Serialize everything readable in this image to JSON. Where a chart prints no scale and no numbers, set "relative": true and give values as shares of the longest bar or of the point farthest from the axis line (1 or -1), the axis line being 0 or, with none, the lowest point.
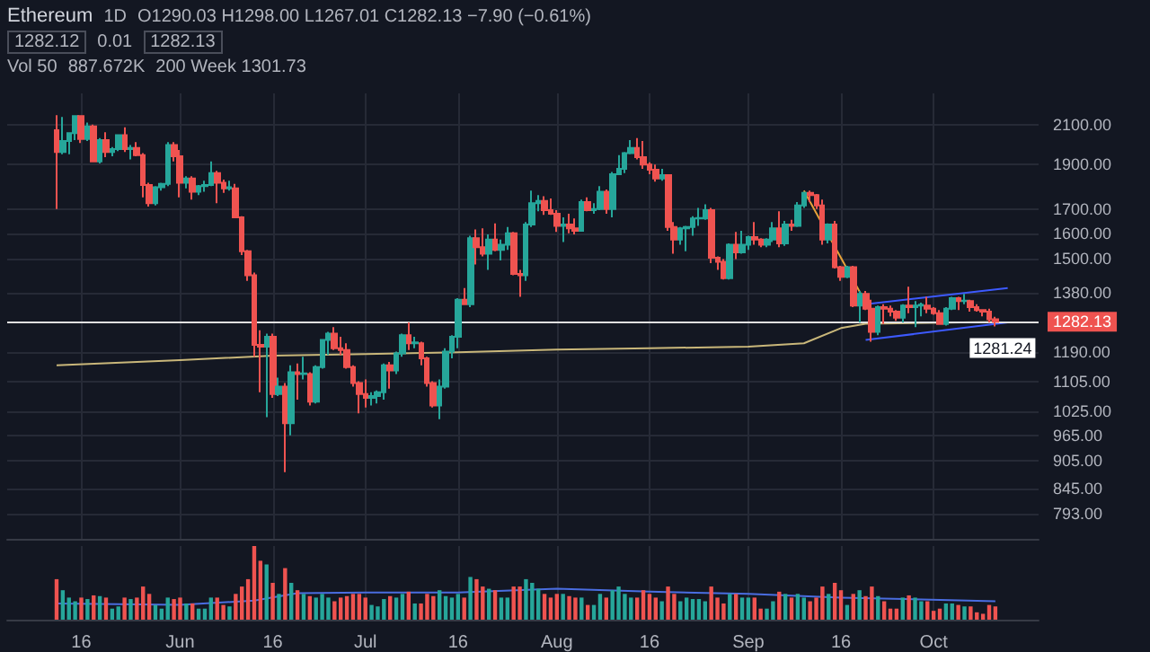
{
  "chart_data": [
    {
      "type": "candlestick",
      "title": "Ethereum",
      "annotations": [
        "1D",
        "O1290.03 H1298.00 L1267.01 C1282.13 −7.90 (−0.61%)",
        "1282.12",
        "0.01",
        "1282.13",
        "Vol 50",
        "887.672K",
        "200 Week 1301.73"
      ],
      "x": [
        "--05-12",
        "--05-13",
        "--05-14",
        "--05-15",
        "--05-16",
        "--05-17",
        "--05-18",
        "--05-19",
        "--05-20",
        "--05-21",
        "--05-22",
        "--05-23",
        "--05-24",
        "--05-25",
        "--05-26",
        "--05-27",
        "--05-28",
        "--05-29",
        "--05-30",
        "--05-31",
        "--06-01",
        "--06-02",
        "--06-03",
        "--06-04",
        "--06-05",
        "--06-06",
        "--06-07",
        "--06-08",
        "--06-09",
        "--06-10",
        "--06-11",
        "--06-12",
        "--06-13",
        "--06-14",
        "--06-15",
        "--06-16",
        "--06-17",
        "--06-18",
        "--06-19",
        "--06-20",
        "--06-21",
        "--06-22",
        "--06-23",
        "--06-24",
        "--06-25",
        "--06-26",
        "--06-27",
        "--06-28",
        "--06-29",
        "--06-30",
        "--07-01",
        "--07-02",
        "--07-03",
        "--07-04",
        "--07-05",
        "--07-06",
        "--07-07",
        "--07-08",
        "--07-09",
        "--07-10",
        "--07-11",
        "--07-12",
        "--07-13",
        "--07-14",
        "--07-15",
        "--07-16",
        "--07-17",
        "--07-18",
        "--07-19",
        "--07-20",
        "--07-21",
        "--07-22",
        "--07-23",
        "--07-24",
        "--07-25",
        "--07-26",
        "--07-27",
        "--07-28",
        "--07-29",
        "--07-30",
        "--07-31",
        "--08-01",
        "--08-02",
        "--08-03",
        "--08-04",
        "--08-05",
        "--08-06",
        "--08-07",
        "--08-08",
        "--08-09",
        "--08-10",
        "--08-11",
        "--08-12",
        "--08-13",
        "--08-14",
        "--08-15",
        "--08-16",
        "--08-17",
        "--08-18",
        "--08-19",
        "--08-20",
        "--08-21",
        "--08-22",
        "--08-23",
        "--08-24",
        "--08-25",
        "--08-26",
        "--08-27",
        "--08-28",
        "--08-29",
        "--08-30",
        "--08-31",
        "--09-01",
        "--09-02",
        "--09-03",
        "--09-04",
        "--09-05",
        "--09-06",
        "--09-07",
        "--09-08",
        "--09-09",
        "--09-10",
        "--09-11",
        "--09-12",
        "--09-13",
        "--09-14",
        "--09-15",
        "--09-16",
        "--09-17",
        "--09-18",
        "--09-19",
        "--09-20",
        "--09-21",
        "--09-22",
        "--09-23",
        "--09-24",
        "--09-25",
        "--09-26",
        "--09-27",
        "--09-28",
        "--09-29",
        "--09-30",
        "--10-01",
        "--10-02",
        "--10-03",
        "--10-04",
        "--10-05",
        "--10-06",
        "--10-07",
        "--10-08",
        "--10-09",
        "--10-10",
        "--10-11"
      ],
      "ohlc": [
        [
          2070,
          2150,
          1700,
          1960
        ],
        [
          1960,
          2140,
          1950,
          2015
        ],
        [
          2015,
          2060,
          1950,
          2055
        ],
        [
          2055,
          2150,
          2020,
          2145
        ],
        [
          2145,
          2150,
          2005,
          2025
        ],
        [
          2025,
          2110,
          2015,
          2090
        ],
        [
          2090,
          2100,
          1910,
          1915
        ],
        [
          1915,
          2030,
          1905,
          2020
        ],
        [
          2020,
          2060,
          1935,
          1960
        ],
        [
          1960,
          1985,
          1940,
          1975
        ],
        [
          1975,
          2050,
          1965,
          2045
        ],
        [
          2045,
          2085,
          1960,
          1975
        ],
        [
          1975,
          1995,
          1925,
          1980
        ],
        [
          1980,
          2010,
          1940,
          1945
        ],
        [
          1945,
          1955,
          1750,
          1805
        ],
        [
          1805,
          1815,
          1710,
          1725
        ],
        [
          1725,
          1800,
          1715,
          1795
        ],
        [
          1795,
          1815,
          1780,
          1810
        ],
        [
          1810,
          2010,
          1800,
          1995
        ],
        [
          1995,
          2010,
          1915,
          1940
        ],
        [
          1940,
          1970,
          1750,
          1815
        ],
        [
          1815,
          1845,
          1790,
          1835
        ],
        [
          1835,
          1845,
          1740,
          1775
        ],
        [
          1775,
          1805,
          1760,
          1800
        ],
        [
          1800,
          1825,
          1775,
          1805
        ],
        [
          1805,
          1915,
          1800,
          1860
        ],
        [
          1860,
          1870,
          1725,
          1815
        ],
        [
          1815,
          1830,
          1770,
          1790
        ],
        [
          1790,
          1825,
          1780,
          1795
        ],
        [
          1790,
          1810,
          1665,
          1665
        ],
        [
          1665,
          1670,
          1515,
          1530
        ],
        [
          1530,
          1535,
          1420,
          1440
        ],
        [
          1440,
          1450,
          1175,
          1210
        ],
        [
          1210,
          1255,
          1075,
          1205
        ],
        [
          1205,
          1245,
          1010,
          1235
        ],
        [
          1235,
          1245,
          1060,
          1070
        ],
        [
          1070,
          1115,
          1065,
          1090
        ],
        [
          1090,
          1100,
          880,
          995
        ],
        [
          995,
          1150,
          965,
          1130
        ],
        [
          1130,
          1155,
          1055,
          1125
        ],
        [
          1125,
          1175,
          1110,
          1127
        ],
        [
          1125,
          1130,
          1040,
          1050
        ],
        [
          1050,
          1150,
          1045,
          1145
        ],
        [
          1145,
          1225,
          1140,
          1225
        ],
        [
          1225,
          1250,
          1180,
          1245
        ],
        [
          1245,
          1265,
          1195,
          1200
        ],
        [
          1200,
          1235,
          1180,
          1195
        ],
        [
          1195,
          1215,
          1140,
          1145
        ],
        [
          1145,
          1150,
          1090,
          1100
        ],
        [
          1100,
          1105,
          1020,
          1070
        ],
        [
          1070,
          1110,
          1035,
          1060
        ],
        [
          1060,
          1075,
          1040,
          1065
        ],
        [
          1065,
          1080,
          1045,
          1075
        ],
        [
          1075,
          1155,
          1055,
          1150
        ],
        [
          1150,
          1160,
          1085,
          1135
        ],
        [
          1135,
          1190,
          1125,
          1185
        ],
        [
          1185,
          1245,
          1175,
          1240
        ],
        [
          1240,
          1280,
          1195,
          1215
        ],
        [
          1215,
          1235,
          1200,
          1218
        ],
        [
          1215,
          1220,
          1150,
          1170
        ],
        [
          1170,
          1175,
          1090,
          1100
        ],
        [
          1100,
          1105,
          1035,
          1040
        ],
        [
          1040,
          1110,
          1005,
          1090
        ],
        [
          1090,
          1200,
          1085,
          1190
        ],
        [
          1190,
          1240,
          1170,
          1235
        ],
        [
          1235,
          1360,
          1200,
          1355
        ],
        [
          1355,
          1395,
          1340,
          1340
        ],
        [
          1340,
          1590,
          1330,
          1580
        ],
        [
          1580,
          1615,
          1480,
          1545
        ],
        [
          1545,
          1620,
          1510,
          1520
        ],
        [
          1520,
          1595,
          1460,
          1575
        ],
        [
          1575,
          1640,
          1530,
          1535
        ],
        [
          1535,
          1575,
          1495,
          1555
        ],
        [
          1555,
          1625,
          1535,
          1600
        ],
        [
          1600,
          1605,
          1440,
          1445
        ],
        [
          1445,
          1460,
          1365,
          1440
        ],
        [
          1440,
          1645,
          1420,
          1635
        ],
        [
          1635,
          1780,
          1625,
          1725
        ],
        [
          1725,
          1760,
          1690,
          1735
        ],
        [
          1735,
          1755,
          1675,
          1695
        ],
        [
          1695,
          1745,
          1675,
          1680
        ],
        [
          1680,
          1695,
          1605,
          1630
        ],
        [
          1630,
          1665,
          1565,
          1635
        ],
        [
          1635,
          1680,
          1600,
          1620
        ],
        [
          1620,
          1660,
          1595,
          1610
        ],
        [
          1610,
          1740,
          1610,
          1730
        ],
        [
          1730,
          1750,
          1690,
          1695
        ],
        [
          1695,
          1725,
          1680,
          1700
        ],
        [
          1700,
          1800,
          1695,
          1775
        ],
        [
          1775,
          1785,
          1680,
          1700
        ],
        [
          1700,
          1865,
          1665,
          1855
        ],
        [
          1855,
          1945,
          1850,
          1880
        ],
        [
          1880,
          1960,
          1860,
          1955
        ],
        [
          1955,
          2020,
          1950,
          1980
        ],
        [
          1980,
          2030,
          1925,
          1935
        ],
        [
          1935,
          2015,
          1880,
          1900
        ],
        [
          1900,
          1910,
          1855,
          1875
        ],
        [
          1875,
          1900,
          1820,
          1835
        ],
        [
          1835,
          1880,
          1825,
          1850
        ],
        [
          1850,
          1855,
          1610,
          1625
        ],
        [
          1625,
          1645,
          1520,
          1575
        ],
        [
          1575,
          1625,
          1555,
          1620
        ],
        [
          1620,
          1630,
          1530,
          1625
        ],
        [
          1625,
          1670,
          1590,
          1660
        ],
        [
          1660,
          1705,
          1630,
          1662
        ],
        [
          1660,
          1720,
          1655,
          1695
        ],
        [
          1695,
          1705,
          1485,
          1505
        ],
        [
          1505,
          1510,
          1460,
          1490
        ],
        [
          1490,
          1500,
          1425,
          1430
        ],
        [
          1430,
          1560,
          1425,
          1555
        ],
        [
          1555,
          1605,
          1500,
          1525
        ],
        [
          1525,
          1610,
          1520,
          1555
        ],
        [
          1555,
          1590,
          1535,
          1585
        ],
        [
          1585,
          1645,
          1555,
          1575
        ],
        [
          1575,
          1580,
          1545,
          1555
        ],
        [
          1555,
          1580,
          1545,
          1575
        ],
        [
          1575,
          1645,
          1565,
          1620
        ],
        [
          1620,
          1690,
          1545,
          1560
        ],
        [
          1560,
          1650,
          1550,
          1635
        ],
        [
          1635,
          1655,
          1610,
          1630
        ],
        [
          1630,
          1730,
          1625,
          1715
        ],
        [
          1715,
          1775,
          1705,
          1770
        ],
        [
          1770,
          1780,
          1730,
          1760
        ],
        [
          1760,
          1765,
          1700,
          1715
        ],
        [
          1715,
          1740,
          1555,
          1575
        ],
        [
          1575,
          1640,
          1560,
          1635
        ],
        [
          1635,
          1650,
          1465,
          1470
        ],
        [
          1470,
          1475,
          1420,
          1435
        ],
        [
          1435,
          1475,
          1430,
          1470
        ],
        [
          1470,
          1475,
          1330,
          1335
        ],
        [
          1335,
          1385,
          1280,
          1375
        ],
        [
          1375,
          1385,
          1320,
          1325
        ],
        [
          1325,
          1355,
          1220,
          1250
        ],
        [
          1250,
          1335,
          1240,
          1330
        ],
        [
          1330,
          1340,
          1275,
          1325
        ],
        [
          1325,
          1335,
          1300,
          1315
        ],
        [
          1315,
          1320,
          1285,
          1295
        ],
        [
          1295,
          1340,
          1280,
          1335
        ],
        [
          1335,
          1400,
          1310,
          1330
        ],
        [
          1330,
          1350,
          1265,
          1335
        ],
        [
          1335,
          1345,
          1300,
          1338
        ],
        [
          1335,
          1365,
          1310,
          1325
        ],
        [
          1325,
          1330,
          1305,
          1310
        ],
        [
          1310,
          1320,
          1275,
          1275
        ],
        [
          1275,
          1330,
          1270,
          1325
        ],
        [
          1325,
          1365,
          1320,
          1360
        ],
        [
          1360,
          1365,
          1320,
          1350
        ],
        [
          1350,
          1375,
          1340,
          1352
        ],
        [
          1350,
          1355,
          1315,
          1330
        ],
        [
          1330,
          1340,
          1315,
          1320
        ],
        [
          1320,
          1320,
          1300,
          1315
        ],
        [
          1315,
          1325,
          1280,
          1290
        ],
        [
          1290.03,
          1298.0,
          1267.01,
          1282.13
        ]
      ],
      "colors": [
        "#ef5350",
        "#26a69a",
        "#26a69a",
        "#26a69a",
        "#ef5350",
        "#26a69a",
        "#ef5350",
        "#26a69a",
        "#ef5350",
        "#26a69a",
        "#26a69a",
        "#ef5350",
        "#26a69a",
        "#ef5350",
        "#ef5350",
        "#ef5350",
        "#26a69a",
        "#26a69a",
        "#26a69a",
        "#ef5350",
        "#ef5350",
        "#26a69a",
        "#ef5350",
        "#26a69a",
        "#26a69a",
        "#26a69a",
        "#ef5350",
        "#ef5350",
        "#26a69a",
        "#ef5350",
        "#ef5350",
        "#ef5350",
        "#ef5350",
        "#ef5350",
        "#26a69a",
        "#ef5350",
        "#26a69a",
        "#ef5350",
        "#26a69a",
        "#ef5350",
        "#26a69a",
        "#ef5350",
        "#26a69a",
        "#26a69a",
        "#26a69a",
        "#ef5350",
        "#ef5350",
        "#ef5350",
        "#ef5350",
        "#ef5350",
        "#ef5350",
        "#26a69a",
        "#26a69a",
        "#26a69a",
        "#ef5350",
        "#26a69a",
        "#26a69a",
        "#ef5350",
        "#26a69a",
        "#ef5350",
        "#ef5350",
        "#ef5350",
        "#26a69a",
        "#26a69a",
        "#26a69a",
        "#26a69a",
        "#ef5350",
        "#26a69a",
        "#ef5350",
        "#ef5350",
        "#26a69a",
        "#ef5350",
        "#26a69a",
        "#26a69a",
        "#ef5350",
        "#ef5350",
        "#26a69a",
        "#26a69a",
        "#26a69a",
        "#ef5350",
        "#ef5350",
        "#ef5350",
        "#26a69a",
        "#ef5350",
        "#ef5350",
        "#26a69a",
        "#ef5350",
        "#26a69a",
        "#26a69a",
        "#ef5350",
        "#26a69a",
        "#26a69a",
        "#26a69a",
        "#26a69a",
        "#ef5350",
        "#ef5350",
        "#ef5350",
        "#ef5350",
        "#26a69a",
        "#ef5350",
        "#ef5350",
        "#26a69a",
        "#26a69a",
        "#26a69a",
        "#26a69a",
        "#26a69a",
        "#ef5350",
        "#ef5350",
        "#ef5350",
        "#26a69a",
        "#ef5350",
        "#26a69a",
        "#26a69a",
        "#ef5350",
        "#ef5350",
        "#26a69a",
        "#26a69a",
        "#ef5350",
        "#26a69a",
        "#ef5350",
        "#26a69a",
        "#26a69a",
        "#ef5350",
        "#ef5350",
        "#ef5350",
        "#26a69a",
        "#ef5350",
        "#ef5350",
        "#26a69a",
        "#ef5350",
        "#26a69a",
        "#ef5350",
        "#ef5350",
        "#26a69a",
        "#ef5350",
        "#ef5350",
        "#ef5350",
        "#26a69a",
        "#ef5350",
        "#26a69a",
        "#26a69a",
        "#ef5350",
        "#ef5350",
        "#ef5350",
        "#26a69a",
        "#26a69a",
        "#ef5350",
        "#26a69a",
        "#ef5350",
        "#ef5350",
        "#ef5350",
        "#ef5350",
        "#ef5350"
      ],
      "series": [
        {
          "type": "line",
          "color": "#c9b77a",
          "x": [
            "--05-12",
            "--06-01",
            "--06-16",
            "--07-01",
            "--07-16",
            "--08-01",
            "--08-16",
            "--09-01",
            "--09-10",
            "--09-16",
            "--09-20",
            "--10-11"
          ],
          "values": [
            1150,
            1165,
            1178,
            1183,
            1188,
            1196,
            1200,
            1205,
            1215,
            1262,
            1276,
            1281.24
          ],
          "value_labels": [
            null,
            null,
            null,
            null,
            null,
            null,
            null,
            null,
            null,
            null,
            null,
            "1281.24"
          ]
        },
        {
          "type": "line",
          "color": "#e8a33a",
          "x": [
            "--09-10",
            "--09-20"
          ],
          "values": [
            1780,
            1345
          ]
        },
        {
          "type": "line",
          "color": "#3d5afe",
          "x": [
            "--09-20",
            "--10-13"
          ],
          "values": [
            1340,
            1395
          ]
        },
        {
          "type": "line",
          "color": "#3d5afe",
          "x": [
            "--09-20",
            "--10-13"
          ],
          "values": [
            1225,
            1280
          ]
        }
      ],
      "xlim": [
        "--05-04",
        "--10-18"
      ],
      "xticks": [
        {
          "value": "--05-16",
          "label": "16"
        },
        {
          "value": "--06-01",
          "label": "Jun"
        },
        {
          "value": "--06-16",
          "label": "16"
        },
        {
          "value": "--07-01",
          "label": "Jul"
        },
        {
          "value": "--07-16",
          "label": "16"
        },
        {
          "value": "--08-01",
          "label": "Aug"
        },
        {
          "value": "--08-16",
          "label": "16"
        },
        {
          "value": "--09-01",
          "label": "Sep"
        },
        {
          "value": "--09-16",
          "label": "16"
        },
        {
          "value": "--10-01",
          "label": "Oct"
        }
      ],
      "ylim": [
        745,
        2270
      ],
      "yticks": [
        {
          "value": 793,
          "label": "793.00"
        },
        {
          "value": 845,
          "label": "845.00"
        },
        {
          "value": 905,
          "label": "905.00"
        },
        {
          "value": 965,
          "label": "965.00"
        },
        {
          "value": 1025,
          "label": "1025.00"
        },
        {
          "value": 1105,
          "label": "1105.00"
        },
        {
          "value": 1190,
          "label": "1190.00"
        },
        {
          "value": 1380,
          "label": "1380.00"
        },
        {
          "value": 1500,
          "label": "1500.00"
        },
        {
          "value": 1600,
          "label": "1600.00"
        },
        {
          "value": 1700,
          "label": "1700.00"
        },
        {
          "value": 1900,
          "label": "1900.00"
        },
        {
          "value": 2100,
          "label": "2100.00"
        }
      ],
      "log": true,
      "grid": true,
      "tick_labels": "y",
      "ref_lines": [
        {
          "axis": "y",
          "value": 1282.13,
          "label": "1282.13",
          "color": "#e0e0e0"
        }
      ]
    },
    {
      "type": "bar",
      "relative": true,
      "tick_labels": "x",
      "grid": "x",
      "x": [
        "--05-12",
        "--05-13",
        "--05-14",
        "--05-15",
        "--05-16",
        "--05-17",
        "--05-18",
        "--05-19",
        "--05-20",
        "--05-21",
        "--05-22",
        "--05-23",
        "--05-24",
        "--05-25",
        "--05-26",
        "--05-27",
        "--05-28",
        "--05-29",
        "--05-30",
        "--05-31",
        "--06-01",
        "--06-02",
        "--06-03",
        "--06-04",
        "--06-05",
        "--06-06",
        "--06-07",
        "--06-08",
        "--06-09",
        "--06-10",
        "--06-11",
        "--06-12",
        "--06-13",
        "--06-14",
        "--06-15",
        "--06-16",
        "--06-17",
        "--06-18",
        "--06-19",
        "--06-20",
        "--06-21",
        "--06-22",
        "--06-23",
        "--06-24",
        "--06-25",
        "--06-26",
        "--06-27",
        "--06-28",
        "--06-29",
        "--06-30",
        "--07-01",
        "--07-02",
        "--07-03",
        "--07-04",
        "--07-05",
        "--07-06",
        "--07-07",
        "--07-08",
        "--07-09",
        "--07-10",
        "--07-11",
        "--07-12",
        "--07-13",
        "--07-14",
        "--07-15",
        "--07-16",
        "--07-17",
        "--07-18",
        "--07-19",
        "--07-20",
        "--07-21",
        "--07-22",
        "--07-23",
        "--07-24",
        "--07-25",
        "--07-26",
        "--07-27",
        "--07-28",
        "--07-29",
        "--07-30",
        "--07-31",
        "--08-01",
        "--08-02",
        "--08-03",
        "--08-04",
        "--08-05",
        "--08-06",
        "--08-07",
        "--08-08",
        "--08-09",
        "--08-10",
        "--08-11",
        "--08-12",
        "--08-13",
        "--08-14",
        "--08-15",
        "--08-16",
        "--08-17",
        "--08-18",
        "--08-19",
        "--08-20",
        "--08-21",
        "--08-22",
        "--08-23",
        "--08-24",
        "--08-25",
        "--08-26",
        "--08-27",
        "--08-28",
        "--08-29",
        "--08-30",
        "--08-31",
        "--09-01",
        "--09-02",
        "--09-03",
        "--09-04",
        "--09-05",
        "--09-06",
        "--09-07",
        "--09-08",
        "--09-09",
        "--09-10",
        "--09-11",
        "--09-12",
        "--09-13",
        "--09-14",
        "--09-15",
        "--09-16",
        "--09-17",
        "--09-18",
        "--09-19",
        "--09-20",
        "--09-21",
        "--09-22",
        "--09-23",
        "--09-24",
        "--09-25",
        "--09-26",
        "--09-27",
        "--09-28",
        "--09-29",
        "--09-30",
        "--10-01",
        "--10-02",
        "--10-03",
        "--10-04",
        "--10-05",
        "--10-06",
        "--10-07",
        "--10-08",
        "--10-09",
        "--10-10",
        "--10-11"
      ],
      "values": [
        0.55,
        0.4,
        0.3,
        0.25,
        0.3,
        0.28,
        0.33,
        0.32,
        0.3,
        0.15,
        0.18,
        0.3,
        0.28,
        0.3,
        0.45,
        0.35,
        0.2,
        0.15,
        0.3,
        0.28,
        0.3,
        0.22,
        0.22,
        0.15,
        0.15,
        0.3,
        0.3,
        0.2,
        0.18,
        0.35,
        0.45,
        0.55,
        1.0,
        0.8,
        0.75,
        0.5,
        0.35,
        0.7,
        0.5,
        0.4,
        0.35,
        0.32,
        0.3,
        0.35,
        0.3,
        0.25,
        0.3,
        0.32,
        0.35,
        0.35,
        0.3,
        0.2,
        0.18,
        0.28,
        0.32,
        0.3,
        0.35,
        0.38,
        0.22,
        0.22,
        0.35,
        0.32,
        0.4,
        0.32,
        0.3,
        0.35,
        0.3,
        0.58,
        0.55,
        0.45,
        0.42,
        0.4,
        0.3,
        0.3,
        0.45,
        0.45,
        0.55,
        0.5,
        0.42,
        0.35,
        0.3,
        0.35,
        0.35,
        0.32,
        0.3,
        0.3,
        0.2,
        0.2,
        0.35,
        0.3,
        0.4,
        0.45,
        0.35,
        0.3,
        0.3,
        0.4,
        0.35,
        0.3,
        0.25,
        0.45,
        0.35,
        0.25,
        0.3,
        0.28,
        0.28,
        0.25,
        0.45,
        0.3,
        0.22,
        0.35,
        0.35,
        0.3,
        0.3,
        0.3,
        0.15,
        0.15,
        0.25,
        0.38,
        0.35,
        0.3,
        0.35,
        0.3,
        0.25,
        0.3,
        0.45,
        0.35,
        0.5,
        0.4,
        0.2,
        0.35,
        0.4,
        0.32,
        0.45,
        0.32,
        0.25,
        0.15,
        0.15,
        0.3,
        0.33,
        0.3,
        0.25,
        0.25,
        0.12,
        0.15,
        0.22,
        0.22,
        0.2,
        0.18,
        0.18,
        0.1,
        0.08,
        0.2,
        0.18
      ],
      "colors": [
        "#ef5350",
        "#26a69a",
        "#26a69a",
        "#26a69a",
        "#ef5350",
        "#26a69a",
        "#ef5350",
        "#26a69a",
        "#ef5350",
        "#26a69a",
        "#26a69a",
        "#ef5350",
        "#26a69a",
        "#ef5350",
        "#ef5350",
        "#ef5350",
        "#26a69a",
        "#26a69a",
        "#26a69a",
        "#ef5350",
        "#ef5350",
        "#26a69a",
        "#ef5350",
        "#26a69a",
        "#26a69a",
        "#26a69a",
        "#ef5350",
        "#ef5350",
        "#26a69a",
        "#ef5350",
        "#ef5350",
        "#ef5350",
        "#ef5350",
        "#ef5350",
        "#26a69a",
        "#ef5350",
        "#26a69a",
        "#ef5350",
        "#26a69a",
        "#ef5350",
        "#26a69a",
        "#ef5350",
        "#26a69a",
        "#26a69a",
        "#26a69a",
        "#ef5350",
        "#ef5350",
        "#ef5350",
        "#ef5350",
        "#ef5350",
        "#ef5350",
        "#26a69a",
        "#26a69a",
        "#26a69a",
        "#ef5350",
        "#26a69a",
        "#26a69a",
        "#ef5350",
        "#26a69a",
        "#ef5350",
        "#ef5350",
        "#ef5350",
        "#26a69a",
        "#26a69a",
        "#26a69a",
        "#26a69a",
        "#ef5350",
        "#26a69a",
        "#ef5350",
        "#ef5350",
        "#26a69a",
        "#ef5350",
        "#26a69a",
        "#26a69a",
        "#ef5350",
        "#ef5350",
        "#26a69a",
        "#26a69a",
        "#26a69a",
        "#ef5350",
        "#ef5350",
        "#ef5350",
        "#26a69a",
        "#ef5350",
        "#ef5350",
        "#26a69a",
        "#ef5350",
        "#26a69a",
        "#26a69a",
        "#ef5350",
        "#26a69a",
        "#26a69a",
        "#26a69a",
        "#26a69a",
        "#ef5350",
        "#ef5350",
        "#ef5350",
        "#ef5350",
        "#26a69a",
        "#ef5350",
        "#ef5350",
        "#26a69a",
        "#26a69a",
        "#26a69a",
        "#26a69a",
        "#26a69a",
        "#ef5350",
        "#ef5350",
        "#ef5350",
        "#26a69a",
        "#ef5350",
        "#26a69a",
        "#26a69a",
        "#ef5350",
        "#ef5350",
        "#26a69a",
        "#26a69a",
        "#ef5350",
        "#26a69a",
        "#ef5350",
        "#26a69a",
        "#26a69a",
        "#ef5350",
        "#ef5350",
        "#ef5350",
        "#26a69a",
        "#ef5350",
        "#ef5350",
        "#26a69a",
        "#ef5350",
        "#26a69a",
        "#ef5350",
        "#ef5350",
        "#26a69a",
        "#ef5350",
        "#ef5350",
        "#ef5350",
        "#26a69a",
        "#ef5350",
        "#26a69a",
        "#26a69a",
        "#ef5350",
        "#ef5350",
        "#ef5350",
        "#26a69a",
        "#26a69a",
        "#ef5350",
        "#26a69a",
        "#ef5350",
        "#ef5350",
        "#ef5350",
        "#ef5350",
        "#ef5350"
      ],
      "series": [
        {
          "type": "line",
          "color": "#4a6de0",
          "x": [
            "--05-12",
            "--06-01",
            "--06-13",
            "--06-20",
            "--07-01",
            "--07-16",
            "--08-01",
            "--08-16",
            "--09-01",
            "--09-16",
            "--10-11"
          ],
          "values": [
            0.22,
            0.2,
            0.26,
            0.36,
            0.37,
            0.37,
            0.42,
            0.38,
            0.35,
            0.3,
            0.25
          ]
        }
      ],
      "xlim": [
        "--05-04",
        "--10-18"
      ],
      "xticks": [
        {
          "value": "--05-16",
          "label": "16"
        },
        {
          "value": "--06-01",
          "label": "Jun"
        },
        {
          "value": "--06-16",
          "label": "16"
        },
        {
          "value": "--07-01",
          "label": "Jul"
        },
        {
          "value": "--07-16",
          "label": "16"
        },
        {
          "value": "--08-01",
          "label": "Aug"
        },
        {
          "value": "--08-16",
          "label": "16"
        },
        {
          "value": "--09-01",
          "label": "Sep"
        },
        {
          "value": "--09-16",
          "label": "16"
        },
        {
          "value": "--10-01",
          "label": "Oct"
        }
      ]
    }
  ]
}
